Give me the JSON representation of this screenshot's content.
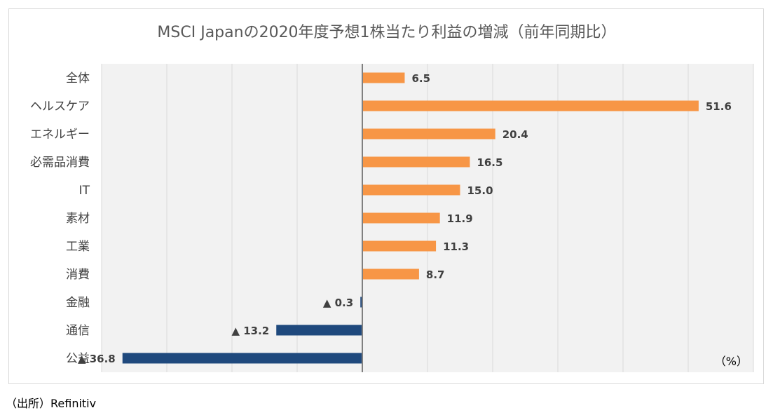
{
  "chart_data": {
    "type": "bar",
    "orientation": "horizontal",
    "title": "MSCI Japanの2020年度予想1株当たり利益の増減（前年同期比）",
    "categories": [
      "全体",
      "ヘルスケア",
      "エネルギー",
      "必需品消費",
      "IT",
      "素材",
      "工業",
      "消費",
      "金融",
      "通信",
      "公益"
    ],
    "values": [
      6.5,
      51.6,
      20.4,
      16.5,
      15.0,
      11.9,
      11.3,
      8.7,
      -0.3,
      -13.2,
      -36.8
    ],
    "value_labels": [
      "6.5",
      "51.6",
      "20.4",
      "16.5",
      "15.0",
      "11.9",
      "11.3",
      "8.7",
      "▲ 0.3",
      "▲ 13.2",
      "▲ 36.8"
    ],
    "unit_label": "（%）",
    "xlim": [
      -40,
      60
    ],
    "grid": true,
    "colors": {
      "positive": "#f79646",
      "negative": "#1f497d",
      "plot_bg": "#f2f2f2",
      "grid": "#d9d9d9",
      "axis": "#808080"
    }
  },
  "source": "（出所）Refinitiv"
}
